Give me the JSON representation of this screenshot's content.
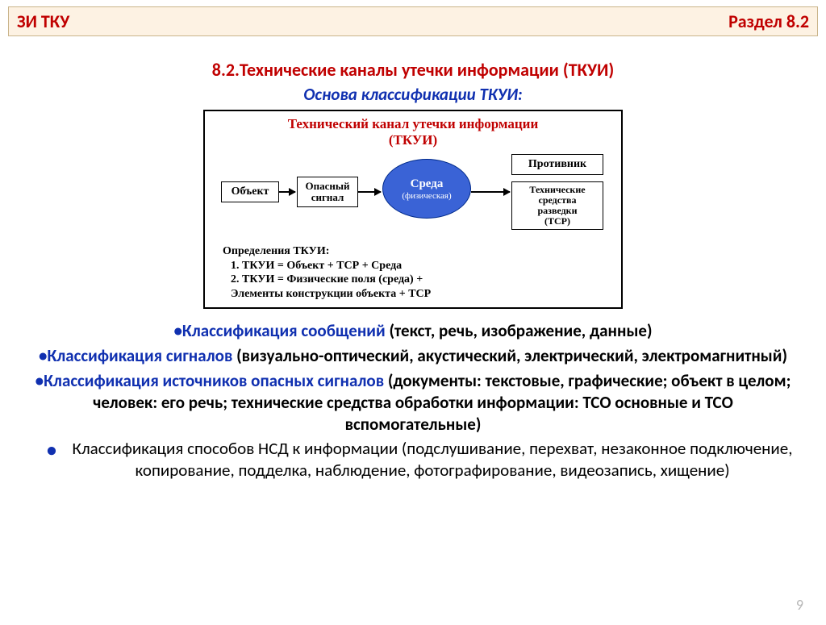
{
  "header": {
    "left": "ЗИ ТКУ",
    "right": "Раздел 8.2"
  },
  "title": "8.2.Технические каналы утечки информации (ТКУИ)",
  "subtitle": "Основа классификации ТКУИ:",
  "diagram": {
    "title_l1": "Технический канал утечки информации",
    "title_l2": "(ТКУИ)",
    "nodes": {
      "object": "Объект",
      "signal": "Опасный\nсигнал",
      "env_main": "Среда",
      "env_sub": "(физическая)",
      "enemy": "Противник",
      "tcp": "Технические\nсредства\nразведки\n(ТСР)"
    },
    "defs_heading": "Определения ТКУИ:",
    "defs": [
      "1.   ТКУИ = Объект + ТСР + Среда",
      "2.   ТКУИ = Физические поля (среда) +",
      "       Элементы конструкции объекта + ТСР"
    ],
    "colors": {
      "border": "#000000",
      "title": "#c00000",
      "ellipse_fill": "#3a63d6",
      "ellipse_border": "#002a8a",
      "ellipse_text": "#ffffff"
    }
  },
  "bullets": [
    {
      "lead": "•Классификация сообщений ",
      "rest": "(текст, речь, изображение, данные)"
    },
    {
      "lead": "•Классификация сигналов ",
      "rest": "(визуально-оптический, акустический, электрический, электромагнитный)"
    },
    {
      "lead": "•Классификация источников опасных сигналов ",
      "rest": "(документы: текстовые, графические; объект в целом; человек: его речь; технические средства обработки информации: ТСО основные и ТСО вспомогательные)"
    },
    {
      "lead": "Классификация способов НСД к информации ",
      "rest": "(подслушивание, перехват, незаконное подключение, копирование, подделка, наблюдение, фотографирование, видеозапись, хищение)"
    }
  ],
  "page_number": "9",
  "colors": {
    "header_bg": "#fdf2e3",
    "header_border": "#c9b48a",
    "red": "#c00000",
    "blue": "#1030b0",
    "pagenum": "#b8b8b8",
    "bg": "#ffffff"
  }
}
